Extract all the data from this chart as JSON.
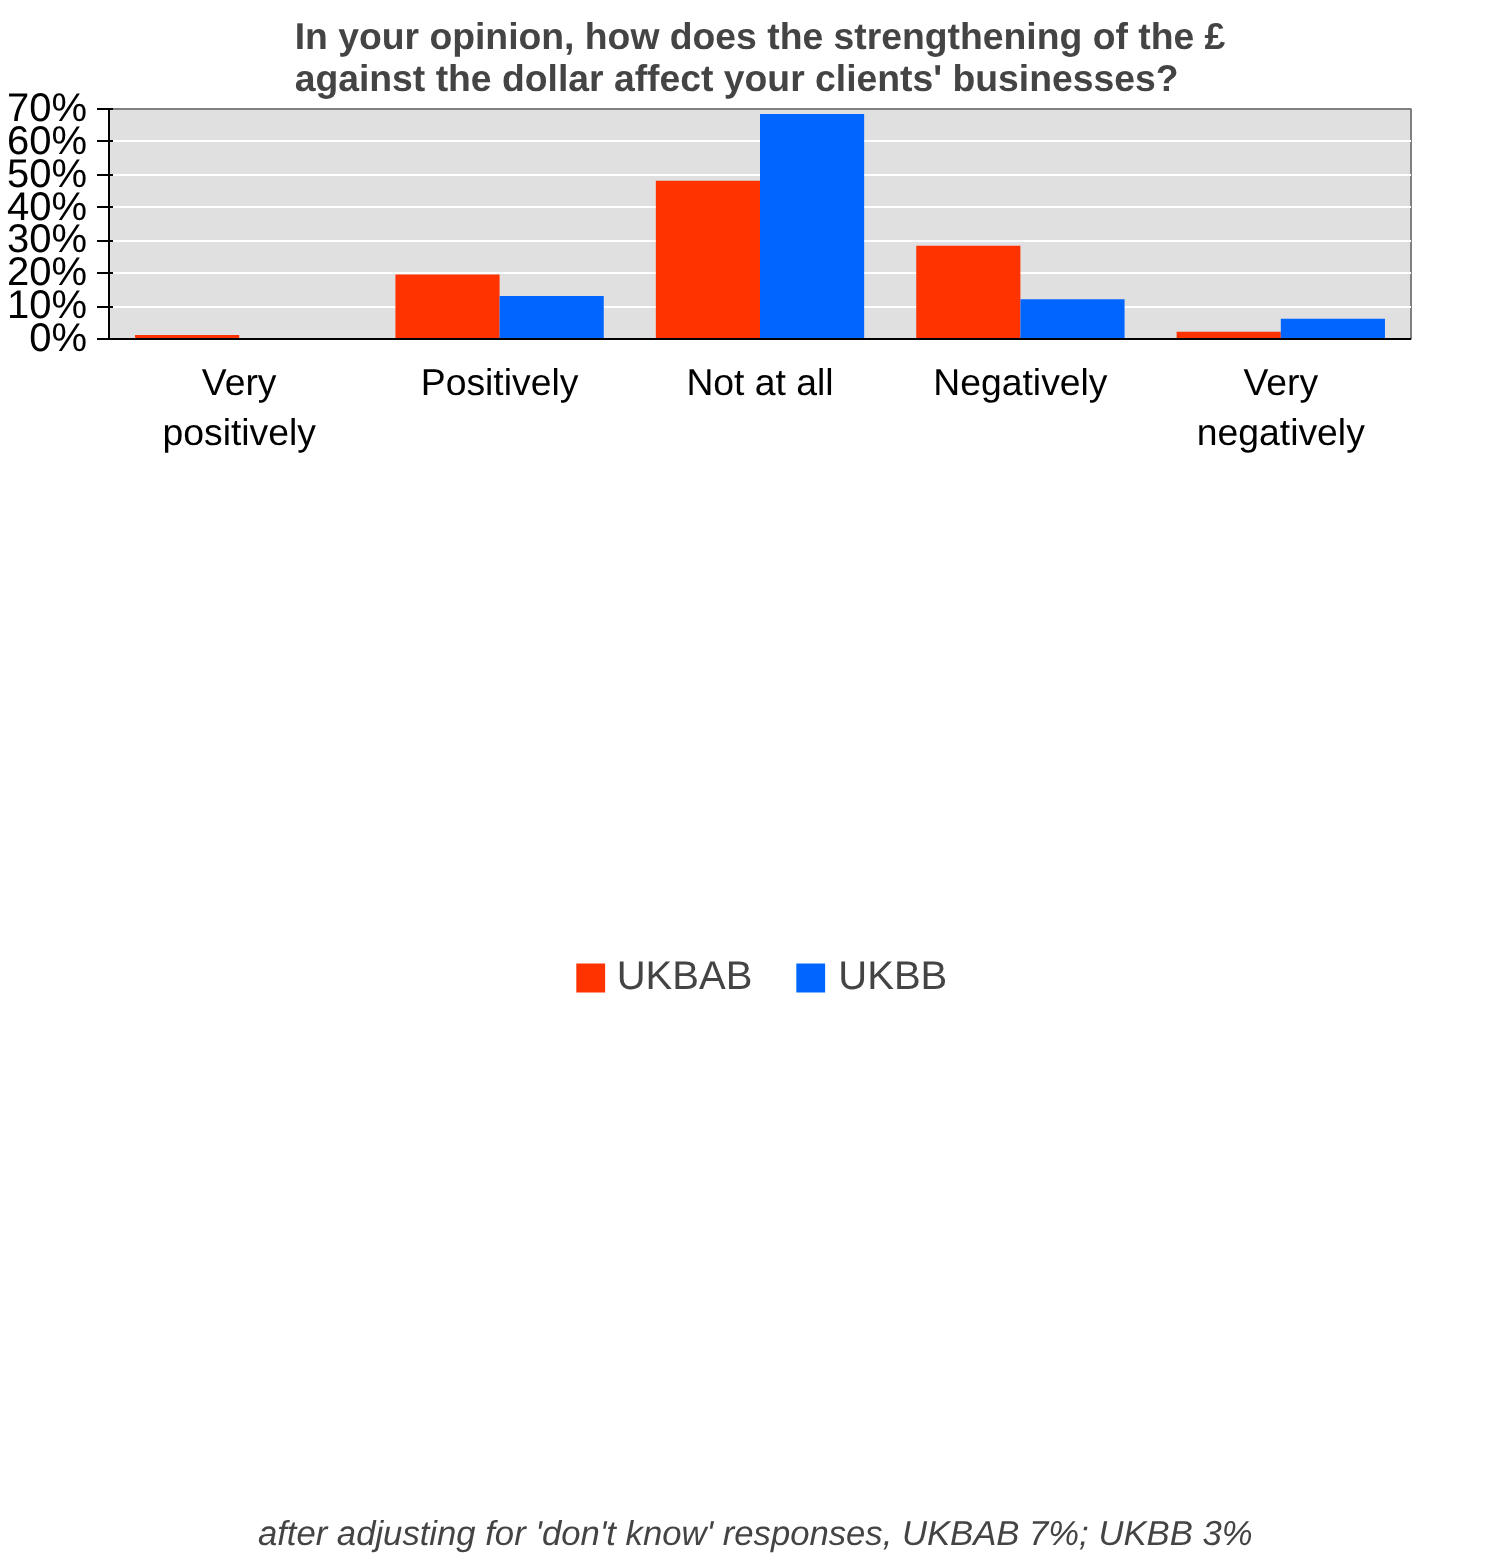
{
  "chart_data": {
    "type": "bar",
    "title": "In your opinion, how does the strengthening of the £\nagainst the dollar affect your clients' businesses?",
    "categories": [
      "Very\npositively",
      "Positively",
      "Not at all",
      "Negatively",
      "Very\nnegatively"
    ],
    "series": [
      {
        "name": "UKBAB",
        "color": "#ff3300",
        "values": [
          1.2,
          19.6,
          48.2,
          28.4,
          2.2
        ]
      },
      {
        "name": "UKBB",
        "color": "#0066ff",
        "values": [
          0,
          13.1,
          68.5,
          12.1,
          6.2
        ]
      }
    ],
    "ylim": [
      0,
      70
    ],
    "yticks": [
      {
        "value": 0,
        "label": "0%"
      },
      {
        "value": 10,
        "label": "10%"
      },
      {
        "value": 20,
        "label": "20%"
      },
      {
        "value": 30,
        "label": "30%"
      },
      {
        "value": 40,
        "label": "40%"
      },
      {
        "value": 50,
        "label": "50%"
      },
      {
        "value": 60,
        "label": "60%"
      },
      {
        "value": 70,
        "label": "70%"
      }
    ],
    "grid": "y",
    "legend": "bottom",
    "annotations": [
      "after adjusting for 'don't know' responses,  UKBAB 7%; UKBB 3%"
    ]
  }
}
